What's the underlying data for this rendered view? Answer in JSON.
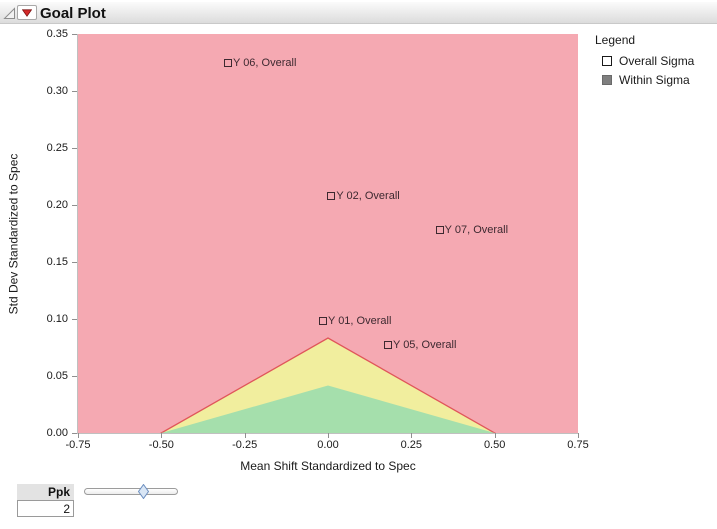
{
  "window": {
    "title": "Goal Plot"
  },
  "icons": {
    "disclosure": "disclosure-triangle-icon",
    "red_triangle": "red-triangle-menu-icon",
    "overall_marker": "open-square-icon",
    "within_marker": "filled-square-icon"
  },
  "legend": {
    "title": "Legend",
    "items": [
      {
        "label": "Overall Sigma",
        "marker": "open-square"
      },
      {
        "label": "Within Sigma",
        "marker": "filled-square"
      }
    ]
  },
  "controls": {
    "ppk_label": "Ppk",
    "ppk_value": "2"
  },
  "colors": {
    "red_zone": "#f5a9b2",
    "yellow_zone": "#f1ee9e",
    "green_zone": "#a5dfac",
    "zone_edge": "#e0565a",
    "point": "#3d2930"
  },
  "chart_data": {
    "type": "scatter",
    "title": "Goal Plot",
    "xlabel": "Mean Shift Standardized to Spec",
    "ylabel": "Std Dev Standardized to Spec",
    "xlim": [
      -0.75,
      0.75
    ],
    "ylim": [
      0,
      0.35
    ],
    "x_tick_labels": [
      "-0.75",
      "-0.50",
      "-0.25",
      "0.00",
      "0.25",
      "0.50",
      "0.75"
    ],
    "y_tick_labels": [
      "0.00",
      "0.05",
      "0.10",
      "0.15",
      "0.20",
      "0.25",
      "0.30",
      "0.35"
    ],
    "grid": false,
    "legend_position": "right",
    "points": [
      {
        "label": "Y 06, Overall",
        "x": -0.3,
        "y": 0.325
      },
      {
        "label": "Y 02, Overall",
        "x": 0.01,
        "y": 0.208
      },
      {
        "label": "Y 07, Overall",
        "x": 0.335,
        "y": 0.178
      },
      {
        "label": "Y 01, Overall",
        "x": -0.015,
        "y": 0.098
      },
      {
        "label": "Y 05, Overall",
        "x": 0.18,
        "y": 0.077
      }
    ],
    "regions": [
      {
        "name": "yellow-goal-triangle",
        "base_x": [
          -0.5,
          0.5
        ],
        "apex": [
          0,
          0.0833
        ],
        "fill": "#f1ee9e",
        "stroke": "#e0565a"
      },
      {
        "name": "green-goal-triangle",
        "base_x": [
          -0.5,
          0.5
        ],
        "apex": [
          0,
          0.0417
        ],
        "fill": "#a5dfac",
        "stroke": "none"
      }
    ]
  }
}
